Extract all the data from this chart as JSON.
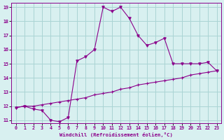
{
  "xlabel": "Windchill (Refroidissement éolien,°C)",
  "ylabel": "",
  "bg_color": "#d8f0f0",
  "line_color": "#8b008b",
  "grid_color": "#aad4d4",
  "xlim": [
    -0.5,
    23.5
  ],
  "ylim": [
    10.8,
    19.3
  ],
  "xticks": [
    0,
    1,
    2,
    3,
    4,
    5,
    6,
    7,
    8,
    9,
    10,
    11,
    12,
    13,
    14,
    15,
    16,
    17,
    18,
    19,
    20,
    21,
    22,
    23
  ],
  "yticks": [
    11,
    12,
    13,
    14,
    15,
    16,
    17,
    18,
    19
  ],
  "line_straight_x": [
    0,
    1,
    2,
    3,
    4,
    5,
    6,
    7,
    8,
    9,
    10,
    11,
    12,
    13,
    14,
    15,
    16,
    17,
    18,
    19,
    20,
    21,
    22,
    23
  ],
  "line_straight_y": [
    11.9,
    12.0,
    12.0,
    12.1,
    12.2,
    12.3,
    12.4,
    12.5,
    12.6,
    12.8,
    12.9,
    13.0,
    13.2,
    13.3,
    13.5,
    13.6,
    13.7,
    13.8,
    13.9,
    14.0,
    14.2,
    14.3,
    14.4,
    14.5
  ],
  "line_curve_x": [
    0,
    1,
    2,
    3,
    4,
    5,
    6,
    7,
    8,
    9,
    10,
    11,
    12,
    13,
    14,
    15,
    16,
    17,
    18,
    19,
    20,
    21,
    22,
    23
  ],
  "line_curve_y": [
    11.9,
    12.0,
    11.8,
    11.7,
    11.0,
    10.9,
    11.2,
    15.2,
    15.5,
    16.0,
    19.0,
    18.7,
    19.0,
    18.2,
    17.0,
    16.3,
    16.5,
    16.8,
    15.0,
    15.0,
    15.0,
    15.0,
    15.1,
    14.5
  ]
}
